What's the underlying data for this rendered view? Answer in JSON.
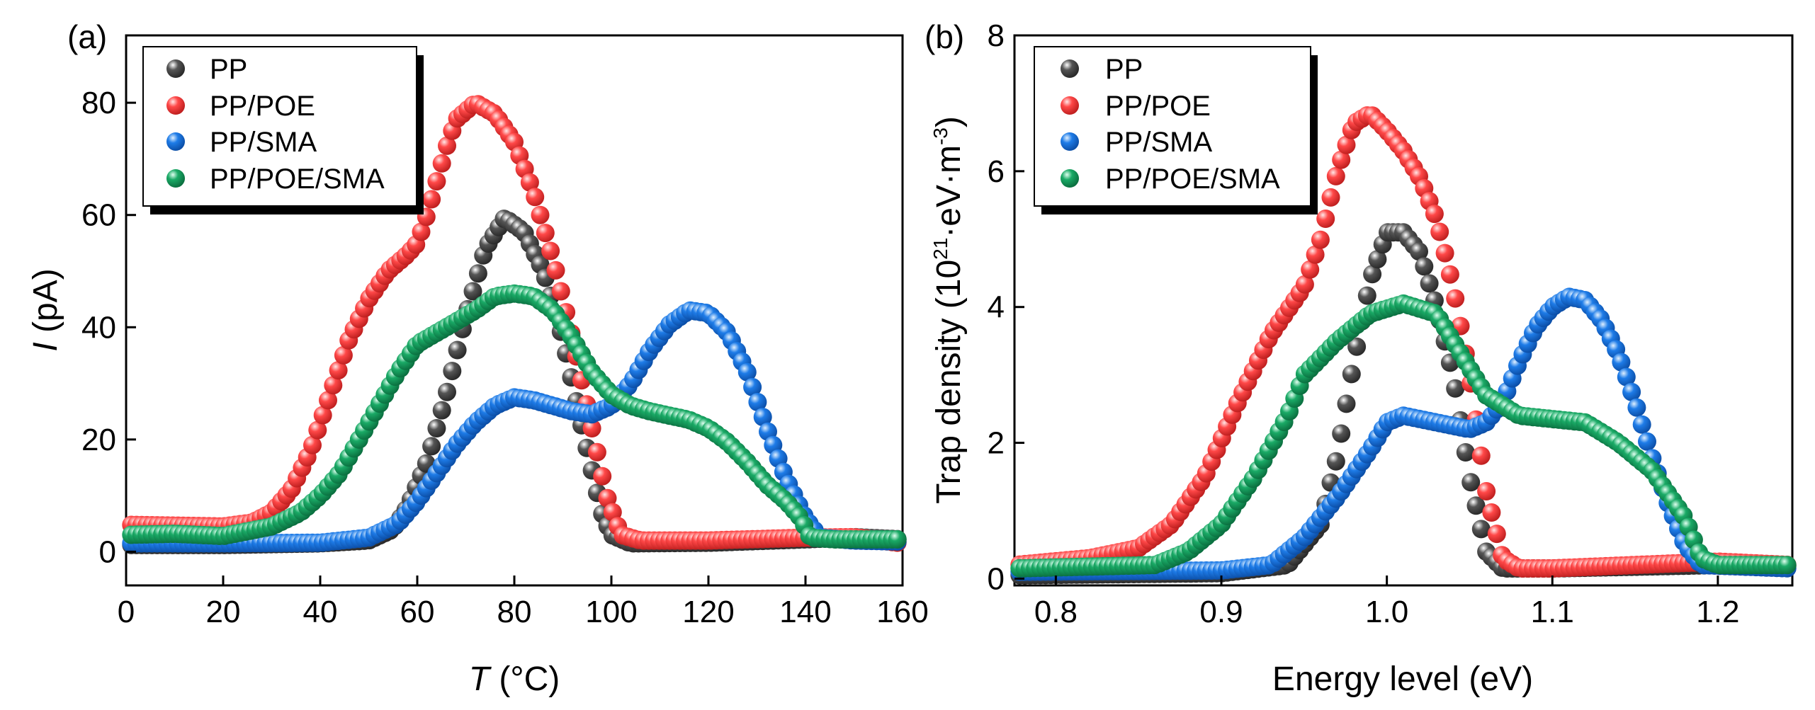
{
  "series_colors": {
    "PP": "#555555",
    "PP/POE": "#ff4848",
    "PP/SMA": "#1e7ce8",
    "PP/POE/SMA": "#1aaa66"
  },
  "chart_data": [
    {
      "type": "scatter",
      "panel": "(a)",
      "xlabel": "T (°C)",
      "xlabel_italic": "T",
      "xlabel_rest": " (°C)",
      "ylabel": "I (pA)",
      "ylabel_italic": "I",
      "ylabel_rest": " (pA)",
      "xlim": [
        0,
        160
      ],
      "ylim": [
        -6,
        92
      ],
      "xticks": [
        0,
        20,
        40,
        60,
        80,
        100,
        120,
        140,
        160
      ],
      "yticks": [
        0,
        20,
        40,
        60,
        80
      ],
      "legend_position": "top-left",
      "series": [
        {
          "name": "PP",
          "points": [
            [
              0,
              1.2
            ],
            [
              20,
              1.2
            ],
            [
              40,
              1.5
            ],
            [
              50,
              2
            ],
            [
              55,
              4
            ],
            [
              58,
              8
            ],
            [
              62,
              16
            ],
            [
              66,
              28
            ],
            [
              70,
              42
            ],
            [
              74,
              54
            ],
            [
              78,
              59.5
            ],
            [
              82,
              57
            ],
            [
              86,
              50
            ],
            [
              90,
              38
            ],
            [
              94,
              22
            ],
            [
              98,
              7
            ],
            [
              100,
              3
            ],
            [
              104,
              1.5
            ],
            [
              120,
              1.6
            ],
            [
              140,
              2.2
            ],
            [
              150,
              2.6
            ],
            [
              160,
              2.2
            ]
          ]
        },
        {
          "name": "PP/POE",
          "points": [
            [
              0,
              4.8
            ],
            [
              20,
              4.5
            ],
            [
              26,
              5.2
            ],
            [
              30,
              7
            ],
            [
              34,
              11
            ],
            [
              38,
              18
            ],
            [
              42,
              28
            ],
            [
              46,
              38
            ],
            [
              50,
              45
            ],
            [
              54,
              50
            ],
            [
              58,
              53
            ],
            [
              60,
              55
            ],
            [
              62,
              60
            ],
            [
              64,
              66
            ],
            [
              66,
              72
            ],
            [
              68,
              77
            ],
            [
              72,
              80
            ],
            [
              76,
              78
            ],
            [
              80,
              73
            ],
            [
              84,
              64
            ],
            [
              88,
              52
            ],
            [
              92,
              38
            ],
            [
              96,
              22
            ],
            [
              99,
              10
            ],
            [
              102,
              3
            ],
            [
              106,
              2
            ],
            [
              120,
              2
            ],
            [
              140,
              2.5
            ],
            [
              150,
              2.6
            ],
            [
              160,
              1.5
            ]
          ]
        },
        {
          "name": "PP/SMA",
          "points": [
            [
              0,
              1.5
            ],
            [
              20,
              1.5
            ],
            [
              40,
              1.6
            ],
            [
              50,
              2.5
            ],
            [
              56,
              5
            ],
            [
              60,
              9
            ],
            [
              64,
              14
            ],
            [
              68,
              19
            ],
            [
              72,
              23
            ],
            [
              76,
              26
            ],
            [
              80,
              27.5
            ],
            [
              84,
              27
            ],
            [
              88,
              26
            ],
            [
              92,
              25
            ],
            [
              96,
              24.5
            ],
            [
              100,
              26
            ],
            [
              104,
              30
            ],
            [
              108,
              36
            ],
            [
              112,
              40.5
            ],
            [
              116,
              43
            ],
            [
              120,
              42.5
            ],
            [
              124,
              39
            ],
            [
              128,
              32
            ],
            [
              132,
              22
            ],
            [
              136,
              13
            ],
            [
              140,
              6
            ],
            [
              143,
              2.5
            ],
            [
              150,
              2
            ],
            [
              160,
              1.8
            ]
          ]
        },
        {
          "name": "PP/POE/SMA",
          "points": [
            [
              0,
              3
            ],
            [
              10,
              3.2
            ],
            [
              20,
              2.8
            ],
            [
              30,
              4.5
            ],
            [
              36,
              7
            ],
            [
              40,
              10
            ],
            [
              44,
              14
            ],
            [
              48,
              20
            ],
            [
              52,
              26
            ],
            [
              56,
              32
            ],
            [
              60,
              37
            ],
            [
              64,
              39
            ],
            [
              68,
              41
            ],
            [
              72,
              43
            ],
            [
              76,
              45.5
            ],
            [
              80,
              46
            ],
            [
              84,
              45.5
            ],
            [
              88,
              43
            ],
            [
              92,
              38
            ],
            [
              96,
              32
            ],
            [
              100,
              28
            ],
            [
              104,
              26
            ],
            [
              108,
              25
            ],
            [
              116,
              23.5
            ],
            [
              120,
              22
            ],
            [
              124,
              19.5
            ],
            [
              128,
              16
            ],
            [
              132,
              12
            ],
            [
              136,
              9
            ],
            [
              139,
              6
            ],
            [
              141,
              2.5
            ],
            [
              146,
              2.2
            ],
            [
              160,
              2.2
            ]
          ]
        }
      ]
    },
    {
      "type": "scatter",
      "panel": "(b)",
      "xlabel": "Energy level (eV)",
      "ylabel": "Trap density (10²¹·eV·m⁻³)",
      "ylabel_pre": "Trap density (10",
      "ylabel_sup1": "21",
      "ylabel_mid": "·eV·m",
      "ylabel_sup2": "-3",
      "ylabel_post": ")",
      "xlim": [
        0.775,
        1.245
      ],
      "ylim": [
        -0.1,
        8.0
      ],
      "xticks": [
        0.8,
        0.9,
        1.0,
        1.1,
        1.2
      ],
      "xtick_labels": [
        "0.8",
        "0.9",
        "1.0",
        "1.1",
        "1.2"
      ],
      "yticks": [
        0,
        2,
        4,
        6,
        8
      ],
      "legend_position": "top-left",
      "series": [
        {
          "name": "PP",
          "points": [
            [
              0.775,
              0.05
            ],
            [
              0.9,
              0.08
            ],
            [
              0.94,
              0.2
            ],
            [
              0.96,
              0.8
            ],
            [
              0.97,
              1.8
            ],
            [
              0.98,
              3.2
            ],
            [
              0.99,
              4.4
            ],
            [
              1.0,
              5.1
            ],
            [
              1.01,
              5.1
            ],
            [
              1.02,
              4.8
            ],
            [
              1.03,
              4.0
            ],
            [
              1.04,
              3.0
            ],
            [
              1.05,
              1.5
            ],
            [
              1.06,
              0.4
            ],
            [
              1.07,
              0.15
            ],
            [
              1.1,
              0.15
            ],
            [
              1.2,
              0.2
            ],
            [
              1.245,
              0.18
            ]
          ]
        },
        {
          "name": "PP/POE",
          "points": [
            [
              0.775,
              0.2
            ],
            [
              0.82,
              0.3
            ],
            [
              0.85,
              0.45
            ],
            [
              0.87,
              0.8
            ],
            [
              0.89,
              1.5
            ],
            [
              0.91,
              2.6
            ],
            [
              0.93,
              3.6
            ],
            [
              0.95,
              4.3
            ],
            [
              0.96,
              5.0
            ],
            [
              0.97,
              6.0
            ],
            [
              0.98,
              6.7
            ],
            [
              0.99,
              6.85
            ],
            [
              1.0,
              6.6
            ],
            [
              1.01,
              6.3
            ],
            [
              1.02,
              5.9
            ],
            [
              1.03,
              5.3
            ],
            [
              1.04,
              4.3
            ],
            [
              1.05,
              3.0
            ],
            [
              1.06,
              1.3
            ],
            [
              1.07,
              0.3
            ],
            [
              1.08,
              0.15
            ],
            [
              1.1,
              0.15
            ],
            [
              1.2,
              0.25
            ],
            [
              1.245,
              0.2
            ]
          ]
        },
        {
          "name": "PP/SMA",
          "points": [
            [
              0.775,
              0.1
            ],
            [
              0.9,
              0.12
            ],
            [
              0.93,
              0.2
            ],
            [
              0.95,
              0.6
            ],
            [
              0.97,
              1.2
            ],
            [
              0.99,
              1.9
            ],
            [
              1.0,
              2.3
            ],
            [
              1.01,
              2.4
            ],
            [
              1.03,
              2.3
            ],
            [
              1.05,
              2.2
            ],
            [
              1.06,
              2.3
            ],
            [
              1.07,
              2.6
            ],
            [
              1.08,
              3.2
            ],
            [
              1.09,
              3.7
            ],
            [
              1.1,
              4.0
            ],
            [
              1.11,
              4.15
            ],
            [
              1.12,
              4.1
            ],
            [
              1.13,
              3.8
            ],
            [
              1.14,
              3.3
            ],
            [
              1.15,
              2.6
            ],
            [
              1.16,
              1.8
            ],
            [
              1.17,
              1.1
            ],
            [
              1.18,
              0.5
            ],
            [
              1.19,
              0.2
            ],
            [
              1.245,
              0.15
            ]
          ]
        },
        {
          "name": "PP/POE/SMA",
          "points": [
            [
              0.775,
              0.15
            ],
            [
              0.86,
              0.2
            ],
            [
              0.88,
              0.4
            ],
            [
              0.9,
              0.8
            ],
            [
              0.92,
              1.5
            ],
            [
              0.94,
              2.4
            ],
            [
              0.95,
              3.0
            ],
            [
              0.97,
              3.5
            ],
            [
              0.99,
              3.9
            ],
            [
              1.01,
              4.05
            ],
            [
              1.03,
              3.9
            ],
            [
              1.05,
              3.1
            ],
            [
              1.06,
              2.7
            ],
            [
              1.08,
              2.4
            ],
            [
              1.12,
              2.3
            ],
            [
              1.14,
              2.0
            ],
            [
              1.16,
              1.6
            ],
            [
              1.18,
              0.9
            ],
            [
              1.19,
              0.3
            ],
            [
              1.2,
              0.2
            ],
            [
              1.245,
              0.2
            ]
          ]
        }
      ]
    }
  ]
}
